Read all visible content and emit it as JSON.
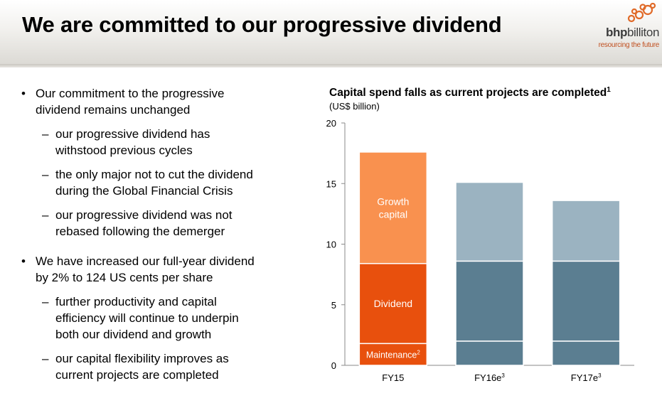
{
  "header": {
    "title": "We are committed to our progressive dividend",
    "logo_name_bold": "bhp",
    "logo_name_rest": "billiton",
    "logo_tagline": "resourcing the future",
    "logo_dot_color": "#e06a28"
  },
  "bullets": [
    {
      "level": 1,
      "text": "Our commitment to the progressive dividend remains unchanged",
      "lines": [
        "Our commitment to the progressive",
        "dividend remains unchanged"
      ]
    },
    {
      "level": 2,
      "lines": [
        "our progressive dividend has",
        "withstood previous cycles"
      ]
    },
    {
      "level": 2,
      "lines": [
        "the only major not to cut the dividend",
        "during the Global Financial Crisis"
      ]
    },
    {
      "level": 2,
      "lines": [
        "our progressive dividend was not",
        "rebased following the demerger"
      ]
    },
    {
      "level": 1,
      "lines": [
        "We have increased our full-year dividend",
        "by 2% to 124 US cents per share"
      ]
    },
    {
      "level": 2,
      "lines": [
        "further productivity and capital",
        "efficiency will continue to underpin",
        "both our dividend and growth"
      ]
    },
    {
      "level": 2,
      "lines": [
        "our capital flexibility improves as",
        "current projects are completed"
      ]
    }
  ],
  "bullet_marks": {
    "level1": "•",
    "level2": "–"
  },
  "chart_data": {
    "type": "bar",
    "stacked": true,
    "title": "Capital spend falls as current projects are completed",
    "title_footnote": "1",
    "subtitle": "(US$ billion)",
    "categories": [
      {
        "label": "FY15",
        "footnote": ""
      },
      {
        "label": "FY16e",
        "footnote": "3"
      },
      {
        "label": "FY17e",
        "footnote": "3"
      }
    ],
    "ylim": [
      0,
      20
    ],
    "yticks": [
      0,
      5,
      10,
      15,
      20
    ],
    "grid": false,
    "series": [
      {
        "name": "Maintenance",
        "footnote": "2",
        "values": [
          1.8,
          2.0,
          2.0
        ],
        "colors": [
          "#e8500d",
          "#5b7e91",
          "#5b7e91"
        ]
      },
      {
        "name": "Dividend",
        "footnote": "",
        "values": [
          6.6,
          6.6,
          6.6
        ],
        "colors": [
          "#e8500d",
          "#5b7e91",
          "#5b7e91"
        ]
      },
      {
        "name": "Growth capital",
        "footnote": "",
        "values": [
          9.2,
          6.5,
          5.0
        ],
        "colors": [
          "#f9914f",
          "#9bb3c1",
          "#9bb3c1"
        ]
      }
    ],
    "segment_labels": [
      {
        "series": 0,
        "category": 0,
        "lines": [
          "Maintenance"
        ],
        "footnote": "2"
      },
      {
        "series": 1,
        "category": 0,
        "lines": [
          "Dividend"
        ],
        "footnote": ""
      },
      {
        "series": 2,
        "category": 0,
        "lines": [
          "Growth",
          "capital"
        ],
        "footnote": ""
      }
    ]
  }
}
